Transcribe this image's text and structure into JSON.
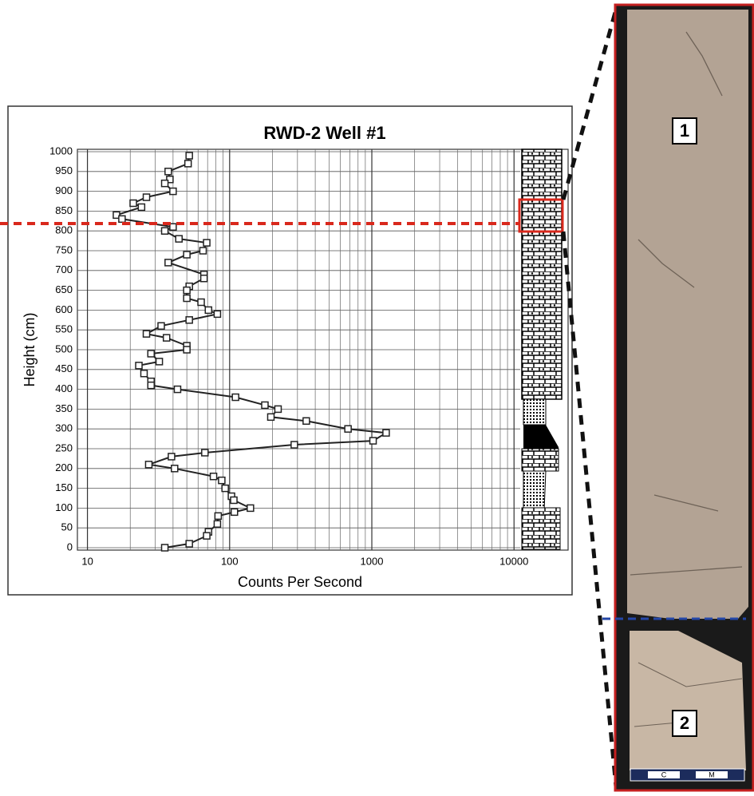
{
  "chart_data": {
    "type": "line",
    "title": "RWD-2 Well #1",
    "x_label": "Counts Per Second",
    "y_label": "Height (cm)",
    "x": [
      52,
      51,
      37,
      38,
      35,
      40,
      26,
      21,
      24,
      16,
      17.5,
      40,
      35,
      44,
      69,
      65,
      50,
      37,
      66,
      66,
      52,
      50,
      50,
      63,
      71,
      82,
      52,
      33,
      26,
      36,
      50,
      50,
      28,
      32,
      23,
      25,
      28,
      28,
      43,
      110,
      177,
      219,
      195,
      346,
      680,
      1260,
      1020,
      285,
      67,
      39,
      27,
      41,
      77,
      88,
      93,
      103,
      107,
      140,
      108,
      83,
      82,
      71,
      69,
      52,
      35
    ],
    "values": [
      990,
      970,
      950,
      930,
      920,
      900,
      885,
      870,
      860,
      840,
      830,
      810,
      800,
      780,
      770,
      750,
      740,
      720,
      690,
      680,
      660,
      650,
      630,
      620,
      600,
      590,
      575,
      560,
      540,
      530,
      510,
      500,
      490,
      470,
      460,
      440,
      420,
      410,
      400,
      380,
      360,
      350,
      330,
      320,
      300,
      290,
      270,
      260,
      240,
      230,
      210,
      200,
      180,
      170,
      150,
      130,
      120,
      100,
      90,
      80,
      60,
      40,
      30,
      10,
      0
    ],
    "color": "#222222",
    "log_x": true,
    "grid": true,
    "xlim": [
      8.5,
      24000
    ],
    "xticks": [
      10,
      100,
      1000,
      10000
    ],
    "xticks_minor": [
      20,
      30,
      40,
      50,
      60,
      70,
      80,
      90,
      200,
      300,
      400,
      500,
      600,
      700,
      800,
      900,
      2000,
      3000,
      4000,
      5000,
      6000,
      7000,
      8000,
      9000
    ],
    "ylim": [
      0,
      1000
    ],
    "yticks": [
      0,
      50,
      100,
      150,
      200,
      250,
      300,
      350,
      400,
      450,
      500,
      550,
      600,
      650,
      700,
      750,
      800,
      850,
      900,
      950,
      1000
    ]
  },
  "core_photo": {
    "labels": [
      "1",
      "2"
    ],
    "scale_labels": [
      "C",
      "M"
    ]
  }
}
